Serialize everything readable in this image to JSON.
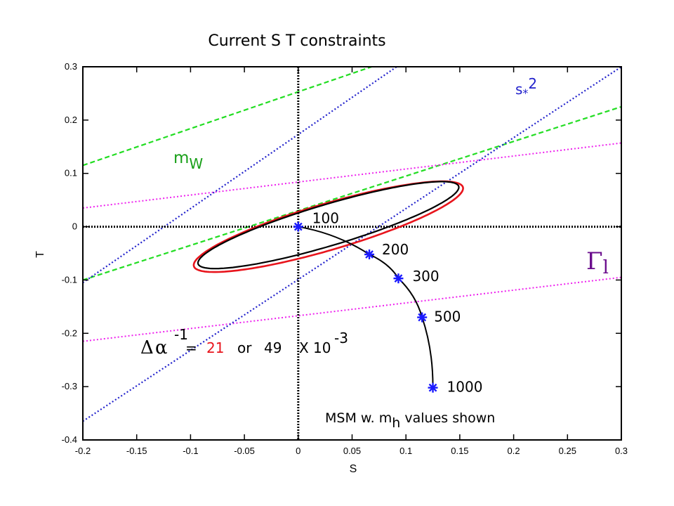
{
  "colors": {
    "frame": "#000000",
    "ellipse_red": "#e8141c",
    "ellipse_black": "#000000",
    "mw_lines": "#22dd22",
    "gamma_lines": "#ee22ee",
    "s2_lines": "#2222cc",
    "msm_curve": "#000000",
    "msm_markers": "#1a1aff",
    "alpha_21": "#e8141c"
  },
  "chart_data": {
    "type": "line",
    "title": "Current S T constraints",
    "xlabel": "S",
    "ylabel": "T",
    "xlim": [
      -0.2,
      0.3
    ],
    "ylim": [
      -0.4,
      0.3
    ],
    "xticks": [
      "-0.2",
      "-0.15",
      "-0.1",
      "-0.05",
      "0",
      "0.05",
      "0.1",
      "0.15",
      "0.2",
      "0.25",
      "0.3"
    ],
    "yticks": [
      "-0.4",
      "-0.3",
      "-0.2",
      "-0.1",
      "0",
      "0.1",
      "0.2",
      "0.3"
    ],
    "grid": false,
    "zero_lines": true,
    "msm_points": [
      {
        "S": 0.0,
        "T": 0.0,
        "label": "100"
      },
      {
        "S": 0.066,
        "T": -0.052,
        "label": "200"
      },
      {
        "S": 0.093,
        "T": -0.097,
        "label": "300"
      },
      {
        "S": 0.115,
        "T": -0.17,
        "label": "500"
      },
      {
        "S": 0.125,
        "T": -0.302,
        "label": "1000"
      }
    ],
    "ellipses": [
      {
        "color": "red",
        "center": [
          0.028,
          -0.0
        ],
        "semi_axes": [
          0.17,
          0.045
        ],
        "angle_deg": 32.5
      },
      {
        "color": "black",
        "center": [
          0.028,
          0.003
        ],
        "semi_axes": [
          0.165,
          0.04
        ],
        "angle_deg": 32.5
      }
    ],
    "band_lines": [
      {
        "name": "mW",
        "color": "green",
        "lines": [
          [
            [
              -0.2,
              0.115
            ],
            [
              0.3,
              0.46
            ]
          ],
          [
            [
              -0.2,
              -0.1
            ],
            [
              0.3,
              0.225
            ]
          ]
        ]
      },
      {
        "name": "Gamma_l",
        "color": "magenta",
        "lines": [
          [
            [
              -0.2,
              0.035
            ],
            [
              0.3,
              0.157
            ]
          ],
          [
            [
              -0.2,
              -0.215
            ],
            [
              0.3,
              -0.095
            ]
          ]
        ]
      },
      {
        "name": "s*2",
        "color": "blue",
        "lines": [
          [
            [
              -0.2,
              -0.105
            ],
            [
              0.3,
              0.59
            ]
          ],
          [
            [
              -0.2,
              -0.365
            ],
            [
              0.3,
              0.3
            ]
          ]
        ]
      }
    ],
    "annotations": {
      "mw_label": {
        "base": "m",
        "sub": "W"
      },
      "gamma_label": {
        "base": "Γ",
        "sub": "l"
      },
      "s2_label": {
        "base": "s",
        "sub": "*",
        "rest": "2"
      },
      "delta_alpha": {
        "delta": "Δ",
        "alpha": "α",
        "exp": "-1",
        "eq": "=",
        "v1": "21",
        "or": "or",
        "v2": "49",
        "times": "X 10",
        "exp2": "-3"
      },
      "msm_note": {
        "pre": "MSM w. m",
        "sub": "h",
        "post": " values shown"
      }
    }
  }
}
